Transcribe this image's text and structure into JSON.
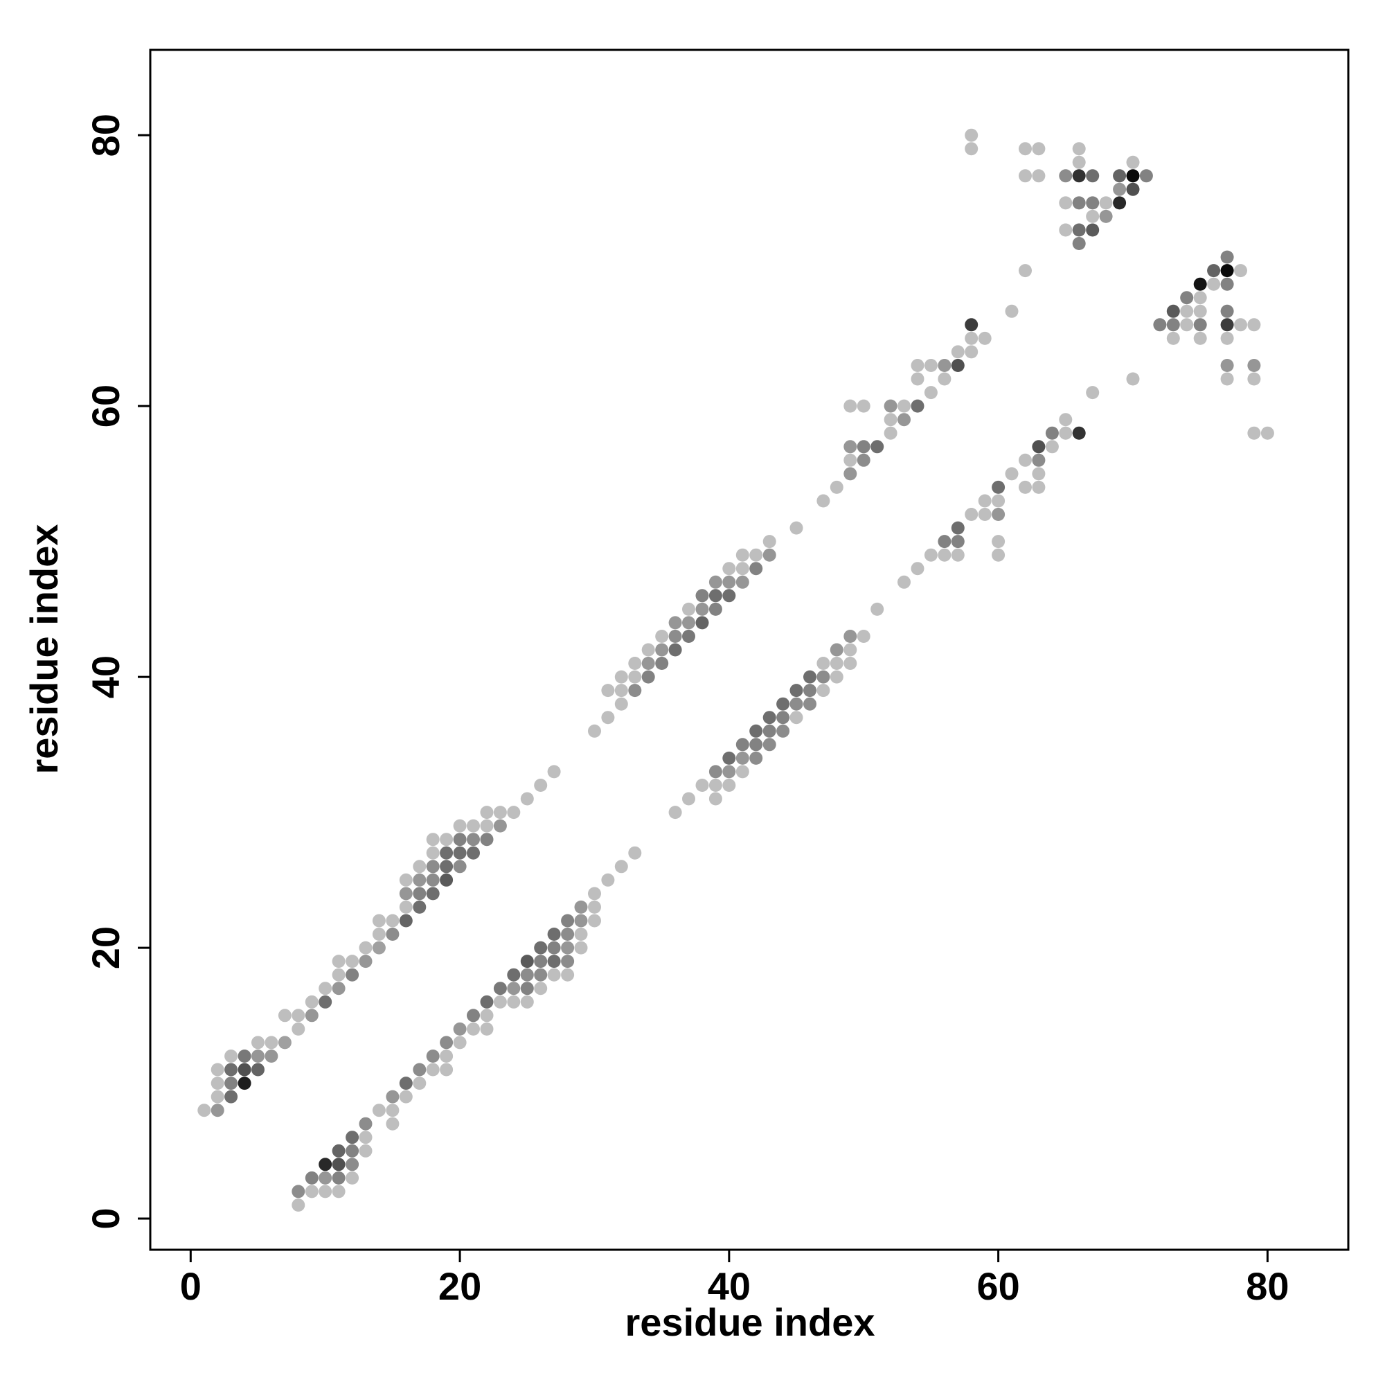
{
  "chart_data": {
    "type": "scatter",
    "xlabel": "residue index",
    "ylabel": "residue index",
    "xlim": [
      -3,
      86
    ],
    "ylim": [
      -2.3,
      86.3
    ],
    "xticks": [
      0,
      20,
      40,
      60,
      80
    ],
    "yticks": [
      0,
      20,
      40,
      60,
      80
    ],
    "grid": false,
    "legend": "none",
    "colors": {
      "dark": "#000000",
      "light": "#c8c8c8",
      "axis": "#000000"
    },
    "note_intensity": "0 = lightest grey, 1 = black",
    "points": [
      [
        1,
        8,
        0.05
      ],
      [
        2,
        8,
        0.25
      ],
      [
        2,
        9,
        0.05
      ],
      [
        2,
        10,
        0.05
      ],
      [
        2,
        11,
        0.05
      ],
      [
        3,
        9,
        0.45
      ],
      [
        3,
        10,
        0.35
      ],
      [
        3,
        11,
        0.45
      ],
      [
        3,
        12,
        0.05
      ],
      [
        4,
        10,
        0.85
      ],
      [
        4,
        11,
        0.6
      ],
      [
        4,
        12,
        0.4
      ],
      [
        5,
        11,
        0.5
      ],
      [
        5,
        12,
        0.25
      ],
      [
        5,
        13,
        0.05
      ],
      [
        6,
        12,
        0.25
      ],
      [
        6,
        13,
        0.05
      ],
      [
        7,
        13,
        0.2
      ],
      [
        7,
        15,
        0.05
      ],
      [
        8,
        14,
        0.05
      ],
      [
        8,
        15,
        0.05
      ],
      [
        9,
        15,
        0.25
      ],
      [
        9,
        16,
        0.05
      ],
      [
        10,
        16,
        0.45
      ],
      [
        10,
        17,
        0.05
      ],
      [
        11,
        17,
        0.25
      ],
      [
        11,
        18,
        0.05
      ],
      [
        11,
        19,
        0.05
      ],
      [
        12,
        18,
        0.35
      ],
      [
        12,
        19,
        0.05
      ],
      [
        13,
        19,
        0.25
      ],
      [
        13,
        20,
        0.05
      ],
      [
        14,
        20,
        0.2
      ],
      [
        14,
        21,
        0.05
      ],
      [
        14,
        22,
        0.05
      ],
      [
        15,
        21,
        0.3
      ],
      [
        15,
        22,
        0.05
      ],
      [
        16,
        22,
        0.5
      ],
      [
        16,
        23,
        0.05
      ],
      [
        16,
        24,
        0.25
      ],
      [
        16,
        25,
        0.05
      ],
      [
        17,
        23,
        0.45
      ],
      [
        17,
        24,
        0.35
      ],
      [
        17,
        25,
        0.25
      ],
      [
        17,
        26,
        0.05
      ],
      [
        18,
        24,
        0.45
      ],
      [
        18,
        25,
        0.3
      ],
      [
        18,
        26,
        0.3
      ],
      [
        18,
        27,
        0.05
      ],
      [
        18,
        28,
        0.05
      ],
      [
        19,
        25,
        0.55
      ],
      [
        19,
        26,
        0.45
      ],
      [
        19,
        27,
        0.45
      ],
      [
        19,
        28,
        0.05
      ],
      [
        20,
        26,
        0.3
      ],
      [
        20,
        27,
        0.45
      ],
      [
        20,
        28,
        0.35
      ],
      [
        20,
        29,
        0.05
      ],
      [
        21,
        27,
        0.45
      ],
      [
        21,
        28,
        0.3
      ],
      [
        21,
        29,
        0.05
      ],
      [
        22,
        28,
        0.35
      ],
      [
        22,
        29,
        0.05
      ],
      [
        22,
        30,
        0.05
      ],
      [
        23,
        29,
        0.25
      ],
      [
        23,
        30,
        0.05
      ],
      [
        24,
        30,
        0.05
      ],
      [
        25,
        31,
        0.05
      ],
      [
        26,
        32,
        0.05
      ],
      [
        27,
        33,
        0.05
      ],
      [
        30,
        36,
        0.05
      ],
      [
        31,
        37,
        0.05
      ],
      [
        31,
        39,
        0.05
      ],
      [
        32,
        38,
        0.05
      ],
      [
        32,
        39,
        0.05
      ],
      [
        32,
        40,
        0.05
      ],
      [
        33,
        39,
        0.3
      ],
      [
        33,
        40,
        0.05
      ],
      [
        33,
        41,
        0.05
      ],
      [
        34,
        40,
        0.35
      ],
      [
        34,
        41,
        0.25
      ],
      [
        34,
        42,
        0.05
      ],
      [
        35,
        41,
        0.35
      ],
      [
        35,
        42,
        0.25
      ],
      [
        35,
        43,
        0.05
      ],
      [
        36,
        42,
        0.45
      ],
      [
        36,
        43,
        0.3
      ],
      [
        36,
        44,
        0.25
      ],
      [
        37,
        43,
        0.4
      ],
      [
        37,
        44,
        0.25
      ],
      [
        37,
        45,
        0.05
      ],
      [
        38,
        44,
        0.5
      ],
      [
        38,
        45,
        0.25
      ],
      [
        38,
        46,
        0.35
      ],
      [
        39,
        45,
        0.35
      ],
      [
        39,
        46,
        0.45
      ],
      [
        39,
        47,
        0.25
      ],
      [
        40,
        46,
        0.45
      ],
      [
        40,
        47,
        0.25
      ],
      [
        40,
        48,
        0.05
      ],
      [
        41,
        47,
        0.25
      ],
      [
        41,
        48,
        0.05
      ],
      [
        41,
        49,
        0.05
      ],
      [
        42,
        48,
        0.35
      ],
      [
        42,
        49,
        0.05
      ],
      [
        43,
        49,
        0.25
      ],
      [
        43,
        50,
        0.05
      ],
      [
        45,
        51,
        0.05
      ],
      [
        47,
        53,
        0.05
      ],
      [
        48,
        54,
        0.05
      ],
      [
        49,
        55,
        0.25
      ],
      [
        49,
        56,
        0.05
      ],
      [
        49,
        57,
        0.25
      ],
      [
        49,
        60,
        0.05
      ],
      [
        50,
        56,
        0.3
      ],
      [
        50,
        57,
        0.35
      ],
      [
        50,
        60,
        0.05
      ],
      [
        51,
        57,
        0.45
      ],
      [
        52,
        58,
        0.05
      ],
      [
        52,
        59,
        0.05
      ],
      [
        52,
        60,
        0.25
      ],
      [
        53,
        59,
        0.25
      ],
      [
        53,
        60,
        0.05
      ],
      [
        54,
        60,
        0.45
      ],
      [
        54,
        62,
        0.05
      ],
      [
        54,
        63,
        0.05
      ],
      [
        55,
        61,
        0.05
      ],
      [
        55,
        63,
        0.05
      ],
      [
        56,
        62,
        0.05
      ],
      [
        56,
        63,
        0.25
      ],
      [
        57,
        63,
        0.6
      ],
      [
        57,
        64,
        0.05
      ],
      [
        58,
        64,
        0.05
      ],
      [
        58,
        65,
        0.05
      ],
      [
        58,
        66,
        0.7
      ],
      [
        59,
        65,
        0.05
      ],
      [
        61,
        67,
        0.05
      ],
      [
        58,
        79,
        0.05
      ],
      [
        58,
        80,
        0.05
      ],
      [
        62,
        70,
        0.05
      ],
      [
        62,
        77,
        0.05
      ],
      [
        62,
        79,
        0.05
      ],
      [
        63,
        77,
        0.05
      ],
      [
        63,
        79,
        0.05
      ],
      [
        65,
        73,
        0.05
      ],
      [
        65,
        75,
        0.05
      ],
      [
        65,
        77,
        0.3
      ],
      [
        66,
        72,
        0.35
      ],
      [
        66,
        73,
        0.45
      ],
      [
        66,
        75,
        0.35
      ],
      [
        66,
        77,
        0.75
      ],
      [
        66,
        78,
        0.05
      ],
      [
        66,
        79,
        0.05
      ],
      [
        67,
        73,
        0.55
      ],
      [
        67,
        74,
        0.05
      ],
      [
        67,
        75,
        0.35
      ],
      [
        67,
        77,
        0.45
      ],
      [
        68,
        74,
        0.25
      ],
      [
        68,
        75,
        0.05
      ],
      [
        69,
        75,
        0.8
      ],
      [
        69,
        76,
        0.25
      ],
      [
        69,
        77,
        0.5
      ],
      [
        70,
        76,
        0.6
      ],
      [
        70,
        77,
        0.95
      ],
      [
        70,
        78,
        0.05
      ],
      [
        71,
        77,
        0.35
      ],
      [
        8,
        1,
        0.05
      ],
      [
        8,
        2,
        0.3
      ],
      [
        9,
        2,
        0.05
      ],
      [
        9,
        3,
        0.35
      ],
      [
        10,
        2,
        0.05
      ],
      [
        10,
        3,
        0.25
      ],
      [
        10,
        4,
        0.8
      ],
      [
        11,
        2,
        0.05
      ],
      [
        11,
        3,
        0.35
      ],
      [
        11,
        4,
        0.6
      ],
      [
        11,
        5,
        0.5
      ],
      [
        12,
        3,
        0.05
      ],
      [
        12,
        4,
        0.3
      ],
      [
        12,
        5,
        0.35
      ],
      [
        12,
        6,
        0.45
      ],
      [
        13,
        5,
        0.05
      ],
      [
        13,
        6,
        0.05
      ],
      [
        13,
        7,
        0.3
      ],
      [
        14,
        8,
        0.05
      ],
      [
        15,
        7,
        0.05
      ],
      [
        15,
        8,
        0.05
      ],
      [
        15,
        9,
        0.25
      ],
      [
        16,
        9,
        0.05
      ],
      [
        16,
        10,
        0.45
      ],
      [
        17,
        10,
        0.05
      ],
      [
        17,
        11,
        0.3
      ],
      [
        18,
        11,
        0.05
      ],
      [
        18,
        12,
        0.3
      ],
      [
        19,
        11,
        0.05
      ],
      [
        19,
        12,
        0.05
      ],
      [
        19,
        13,
        0.3
      ],
      [
        20,
        13,
        0.05
      ],
      [
        20,
        14,
        0.25
      ],
      [
        21,
        14,
        0.05
      ],
      [
        21,
        15,
        0.35
      ],
      [
        22,
        14,
        0.05
      ],
      [
        22,
        15,
        0.05
      ],
      [
        22,
        16,
        0.45
      ],
      [
        23,
        16,
        0.05
      ],
      [
        23,
        17,
        0.4
      ],
      [
        24,
        16,
        0.05
      ],
      [
        24,
        17,
        0.25
      ],
      [
        24,
        18,
        0.45
      ],
      [
        25,
        16,
        0.05
      ],
      [
        25,
        17,
        0.35
      ],
      [
        25,
        18,
        0.3
      ],
      [
        25,
        19,
        0.55
      ],
      [
        26,
        17,
        0.05
      ],
      [
        26,
        18,
        0.3
      ],
      [
        26,
        19,
        0.35
      ],
      [
        26,
        20,
        0.45
      ],
      [
        27,
        18,
        0.05
      ],
      [
        27,
        19,
        0.45
      ],
      [
        27,
        20,
        0.35
      ],
      [
        27,
        21,
        0.45
      ],
      [
        28,
        18,
        0.05
      ],
      [
        28,
        19,
        0.3
      ],
      [
        28,
        20,
        0.25
      ],
      [
        28,
        21,
        0.3
      ],
      [
        28,
        22,
        0.35
      ],
      [
        29,
        20,
        0.05
      ],
      [
        29,
        21,
        0.05
      ],
      [
        29,
        22,
        0.25
      ],
      [
        29,
        23,
        0.25
      ],
      [
        30,
        22,
        0.05
      ],
      [
        30,
        23,
        0.05
      ],
      [
        30,
        24,
        0.05
      ],
      [
        31,
        25,
        0.05
      ],
      [
        32,
        26,
        0.05
      ],
      [
        33,
        27,
        0.05
      ],
      [
        36,
        30,
        0.05
      ],
      [
        37,
        31,
        0.05
      ],
      [
        38,
        32,
        0.05
      ],
      [
        39,
        31,
        0.05
      ],
      [
        39,
        32,
        0.05
      ],
      [
        39,
        33,
        0.3
      ],
      [
        40,
        32,
        0.05
      ],
      [
        40,
        33,
        0.25
      ],
      [
        40,
        34,
        0.45
      ],
      [
        41,
        33,
        0.05
      ],
      [
        41,
        34,
        0.25
      ],
      [
        41,
        35,
        0.35
      ],
      [
        42,
        34,
        0.3
      ],
      [
        42,
        35,
        0.35
      ],
      [
        42,
        36,
        0.45
      ],
      [
        43,
        35,
        0.3
      ],
      [
        43,
        36,
        0.35
      ],
      [
        43,
        37,
        0.45
      ],
      [
        44,
        36,
        0.3
      ],
      [
        44,
        37,
        0.35
      ],
      [
        44,
        38,
        0.45
      ],
      [
        45,
        37,
        0.05
      ],
      [
        45,
        38,
        0.3
      ],
      [
        45,
        39,
        0.45
      ],
      [
        46,
        38,
        0.3
      ],
      [
        46,
        39,
        0.35
      ],
      [
        46,
        40,
        0.45
      ],
      [
        47,
        39,
        0.05
      ],
      [
        47,
        40,
        0.3
      ],
      [
        47,
        41,
        0.05
      ],
      [
        48,
        40,
        0.05
      ],
      [
        48,
        41,
        0.05
      ],
      [
        48,
        42,
        0.25
      ],
      [
        49,
        41,
        0.05
      ],
      [
        49,
        42,
        0.05
      ],
      [
        49,
        43,
        0.25
      ],
      [
        50,
        43,
        0.05
      ],
      [
        51,
        45,
        0.05
      ],
      [
        53,
        47,
        0.05
      ],
      [
        54,
        48,
        0.05
      ],
      [
        55,
        49,
        0.05
      ],
      [
        56,
        49,
        0.05
      ],
      [
        56,
        50,
        0.35
      ],
      [
        57,
        49,
        0.05
      ],
      [
        57,
        50,
        0.35
      ],
      [
        57,
        51,
        0.45
      ],
      [
        58,
        52,
        0.05
      ],
      [
        59,
        52,
        0.05
      ],
      [
        59,
        53,
        0.05
      ],
      [
        60,
        49,
        0.05
      ],
      [
        60,
        50,
        0.05
      ],
      [
        60,
        52,
        0.25
      ],
      [
        60,
        53,
        0.05
      ],
      [
        60,
        54,
        0.45
      ],
      [
        61,
        55,
        0.05
      ],
      [
        62,
        54,
        0.05
      ],
      [
        62,
        56,
        0.05
      ],
      [
        63,
        54,
        0.05
      ],
      [
        63,
        55,
        0.05
      ],
      [
        63,
        56,
        0.3
      ],
      [
        63,
        57,
        0.6
      ],
      [
        64,
        57,
        0.05
      ],
      [
        64,
        58,
        0.35
      ],
      [
        65,
        58,
        0.05
      ],
      [
        65,
        59,
        0.05
      ],
      [
        66,
        58,
        0.75
      ],
      [
        67,
        61,
        0.05
      ],
      [
        70,
        62,
        0.05
      ],
      [
        72,
        66,
        0.35
      ],
      [
        73,
        65,
        0.05
      ],
      [
        73,
        66,
        0.35
      ],
      [
        73,
        67,
        0.55
      ],
      [
        74,
        66,
        0.05
      ],
      [
        74,
        67,
        0.05
      ],
      [
        74,
        68,
        0.35
      ],
      [
        75,
        65,
        0.05
      ],
      [
        75,
        66,
        0.35
      ],
      [
        75,
        67,
        0.05
      ],
      [
        75,
        68,
        0.05
      ],
      [
        75,
        69,
        0.9
      ],
      [
        76,
        69,
        0.05
      ],
      [
        76,
        70,
        0.5
      ],
      [
        77,
        62,
        0.05
      ],
      [
        77,
        63,
        0.25
      ],
      [
        77,
        65,
        0.05
      ],
      [
        77,
        66,
        0.7
      ],
      [
        77,
        67,
        0.35
      ],
      [
        77,
        69,
        0.35
      ],
      [
        77,
        70,
        0.95
      ],
      [
        77,
        71,
        0.35
      ],
      [
        78,
        66,
        0.05
      ],
      [
        78,
        70,
        0.05
      ],
      [
        79,
        58,
        0.05
      ],
      [
        79,
        62,
        0.05
      ],
      [
        79,
        63,
        0.25
      ],
      [
        79,
        66,
        0.05
      ],
      [
        80,
        58,
        0.05
      ]
    ]
  }
}
